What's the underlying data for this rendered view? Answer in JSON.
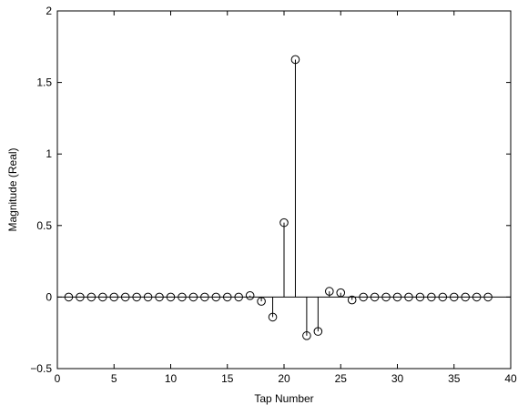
{
  "chart_data": {
    "type": "stem",
    "title": "",
    "xlabel": "Tap Number",
    "ylabel": "Magnitude (Real)",
    "xlim": [
      0,
      40
    ],
    "ylim": [
      -0.5,
      2
    ],
    "xticks": [
      0,
      5,
      10,
      15,
      20,
      25,
      30,
      35,
      40
    ],
    "yticks": [
      -0.5,
      0,
      0.5,
      1,
      1.5,
      2
    ],
    "ytick_labels": [
      "−0.5",
      "0",
      "0.5",
      "1",
      "1.5",
      "2"
    ],
    "grid": false,
    "baseline": 0,
    "marker": "open-circle",
    "x": [
      1,
      2,
      3,
      4,
      5,
      6,
      7,
      8,
      9,
      10,
      11,
      12,
      13,
      14,
      15,
      16,
      17,
      18,
      19,
      20,
      21,
      22,
      23,
      24,
      25,
      26,
      27,
      28,
      29,
      30,
      31,
      32,
      33,
      34,
      35,
      36,
      37,
      38
    ],
    "values": [
      0,
      0,
      0,
      0,
      0,
      0,
      0,
      0,
      0,
      0,
      0,
      0,
      0,
      0,
      0,
      0,
      0.01,
      -0.03,
      -0.14,
      0.52,
      1.66,
      -0.27,
      -0.24,
      0.04,
      0.03,
      -0.02,
      0,
      0,
      0,
      0,
      0,
      0,
      0,
      0,
      0,
      0,
      0,
      0
    ]
  }
}
